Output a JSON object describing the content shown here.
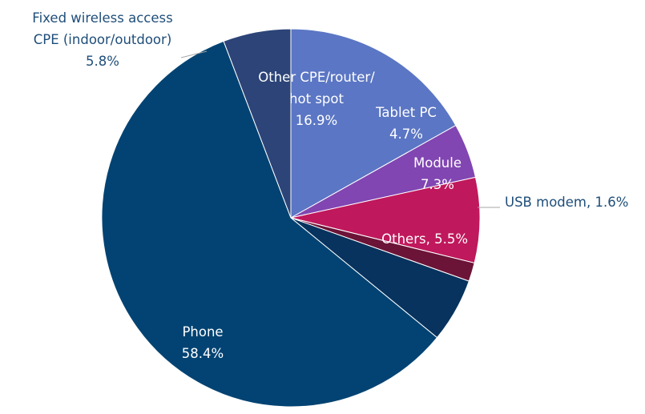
{
  "chart_data": {
    "type": "pie",
    "start_angle_deg": 270,
    "direction": "clockwise",
    "slices": [
      {
        "name": "Other CPE/router/ hot spot",
        "value": 16.9,
        "pct_label": "16.9%",
        "color": "#5B76C4",
        "label_color": "#ffffff"
      },
      {
        "name": "Tablet PC",
        "value": 4.7,
        "pct_label": "4.7%",
        "color": "#8146B2",
        "label_color": "#ffffff"
      },
      {
        "name": "Module",
        "value": 7.3,
        "pct_label": "7.3%",
        "color": "#C0185C",
        "label_color": "#ffffff"
      },
      {
        "name": "USB modem",
        "value": 1.6,
        "pct_label": "1.6%",
        "color": "#6B1438",
        "label_color": "#1F4E79"
      },
      {
        "name": "Others",
        "value": 5.5,
        "pct_label": "5.5%",
        "color": "#07335E",
        "label_color": "#ffffff"
      },
      {
        "name": "Phone",
        "value": 58.4,
        "pct_label": "58.4%",
        "color": "#024373",
        "label_color": "#ffffff"
      },
      {
        "name": "Fixed wireless access CPE (indoor/outdoor)",
        "value": 5.8,
        "pct_label": "5.8%",
        "color": "#2C4478",
        "label_color": "#1F4E79"
      }
    ],
    "labels": [
      {
        "lines": [
          "Other CPE/router/",
          "hot spot",
          "16.9%"
        ]
      },
      {
        "lines": [
          "Tablet PC",
          "4.7%"
        ]
      },
      {
        "lines": [
          "Module",
          "7.3%"
        ]
      },
      {
        "lines": [
          "USB modem, 1.6%"
        ]
      },
      {
        "lines": [
          "Others, 5.5%"
        ]
      },
      {
        "lines": [
          "Phone",
          "58.4%"
        ]
      },
      {
        "lines": [
          "Fixed wireless access",
          "CPE (indoor/outdoor)",
          "5.8%"
        ]
      }
    ]
  }
}
